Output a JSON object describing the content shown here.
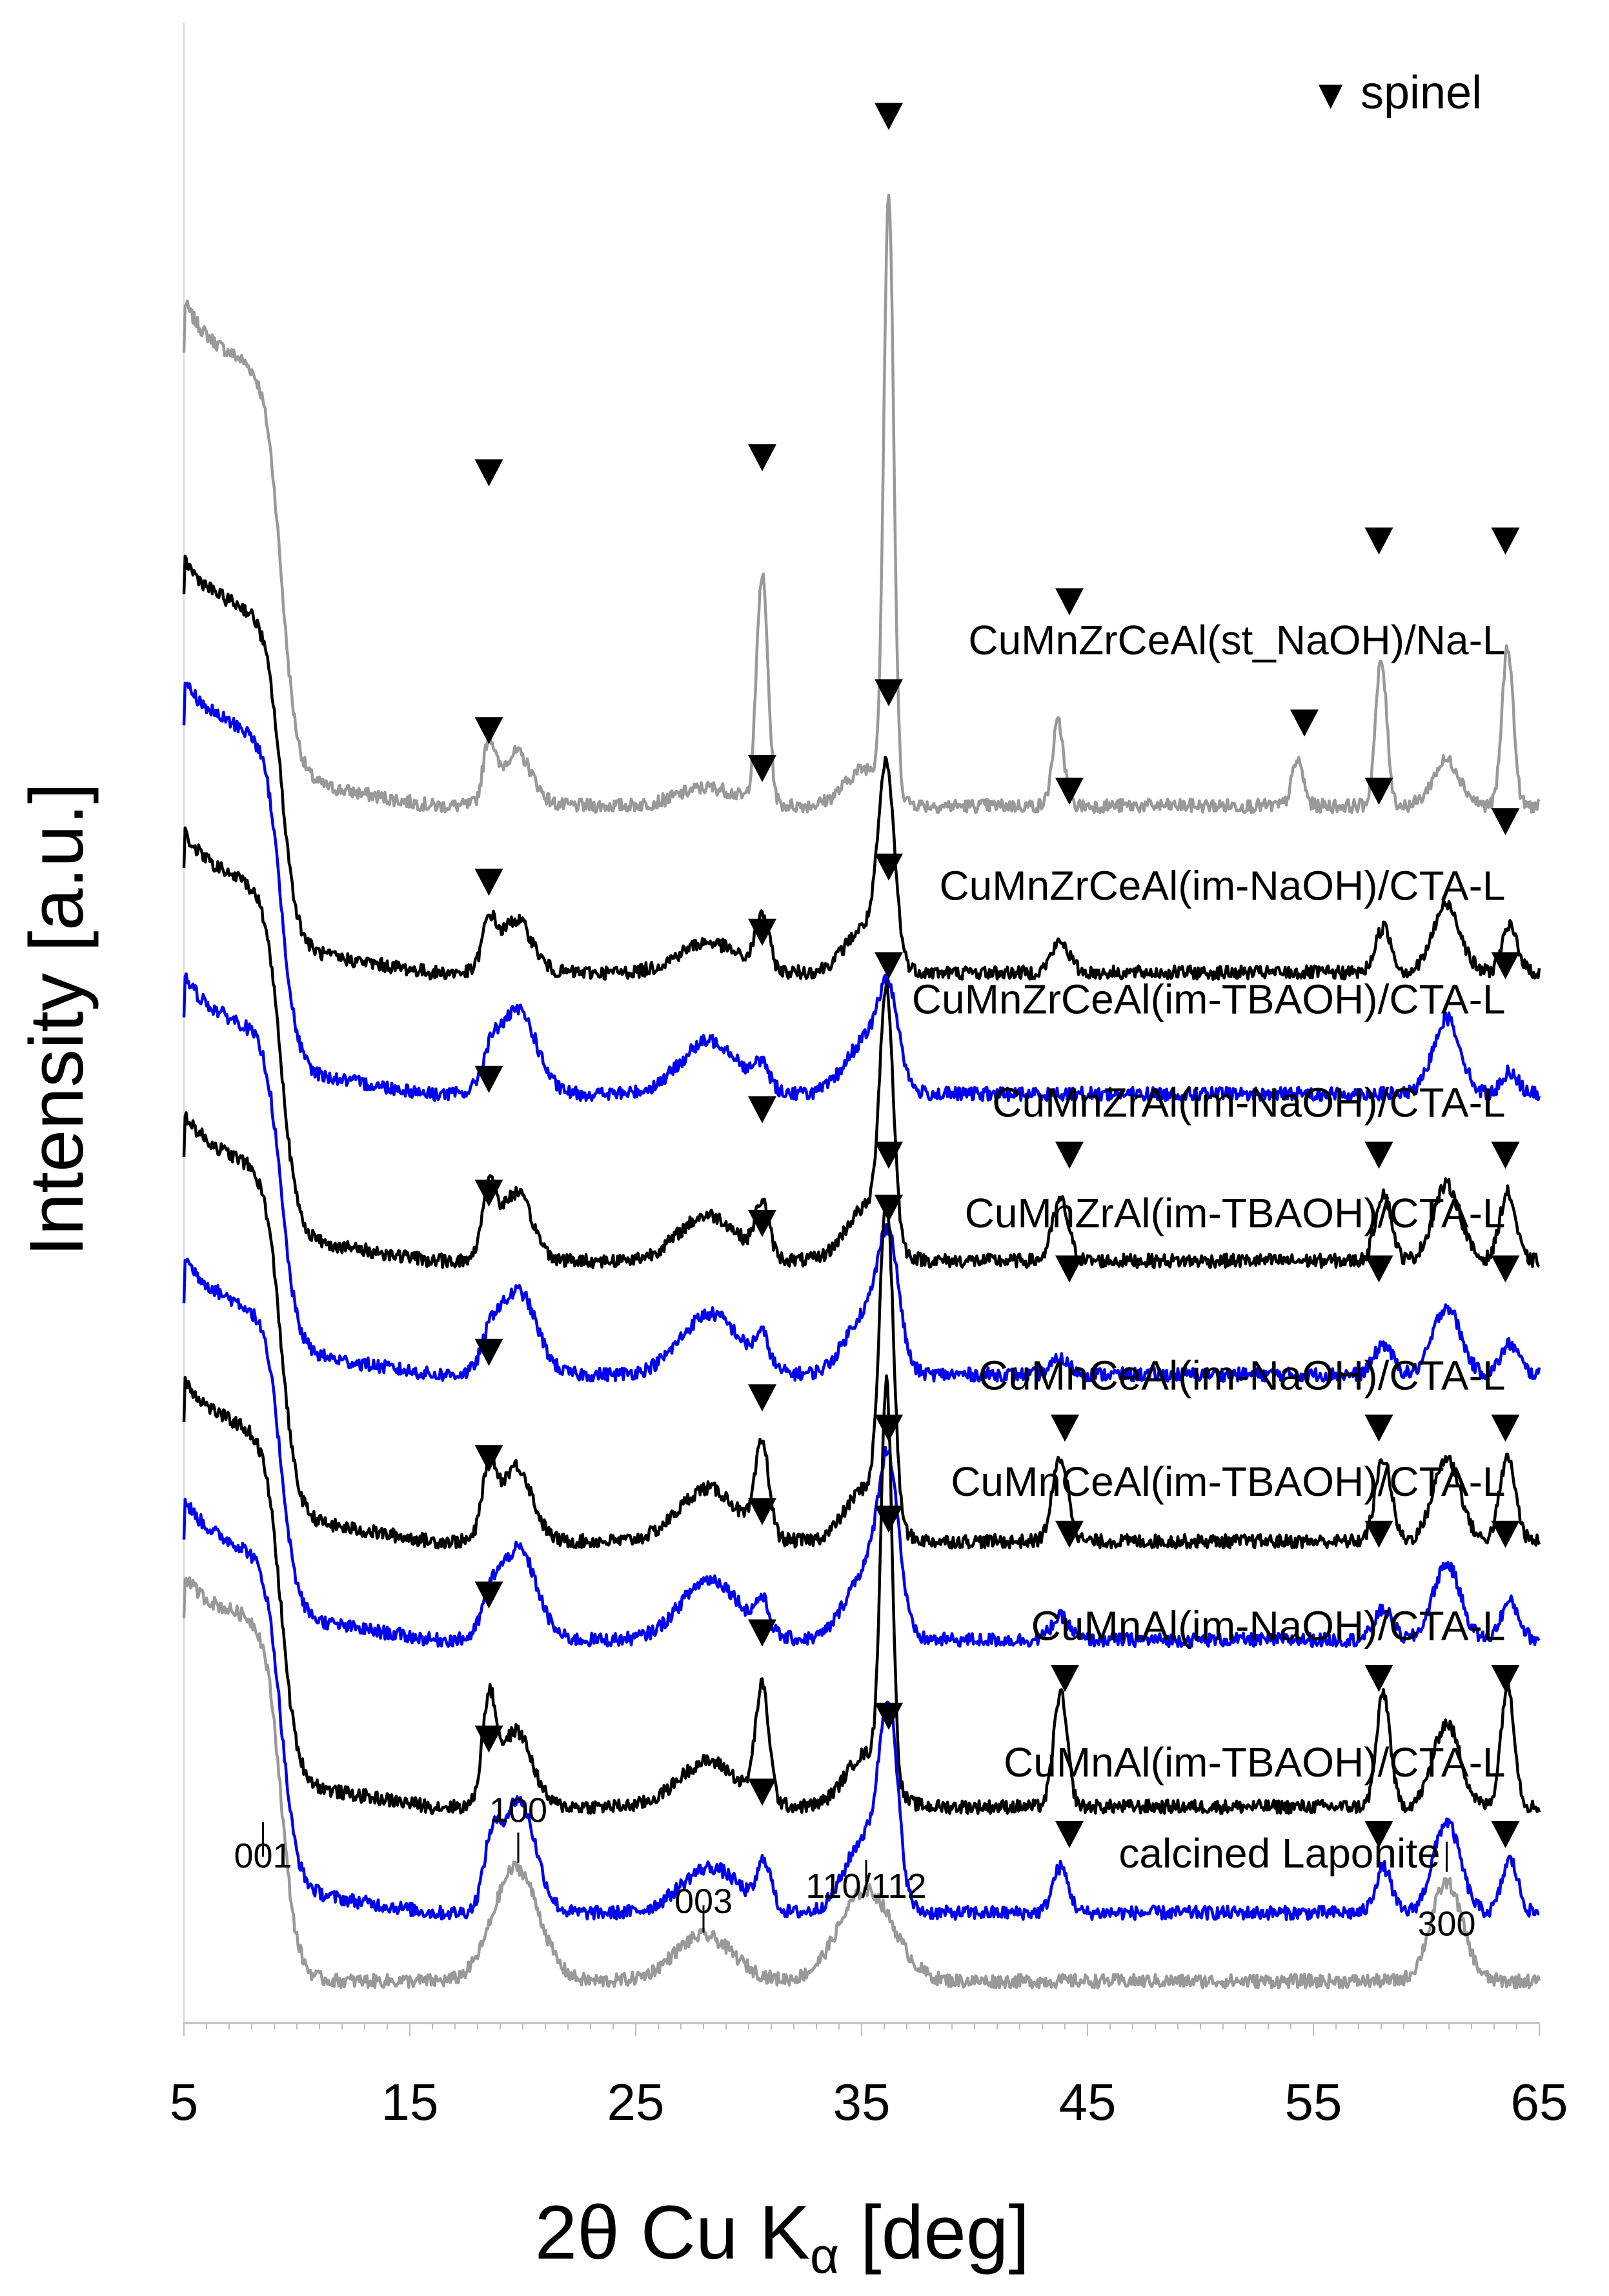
{
  "chart_data": {
    "type": "line",
    "xlabel": "2θ Cu Kα [deg]",
    "xlabel_parts": {
      "main": "2θ Cu K",
      "sub": "α",
      "unit": " [deg]"
    },
    "ylabel": "Intensity [a.u.]",
    "xlim": [
      5,
      65
    ],
    "x_ticks": [
      5,
      15,
      25,
      35,
      45,
      55,
      65
    ],
    "grid": false,
    "legend": {
      "position": "top-right",
      "marker": "▼",
      "label": "spinel"
    },
    "series": [
      {
        "name": "CuMnZrCeAl(st_NaOH)/Na-L",
        "color": "#999999",
        "offset": 7.75,
        "shoulder": 2.7,
        "hump": 0.28,
        "peaks": [
          [
            18.5,
            0.38,
            0.25
          ],
          [
            19.7,
            0.35,
            0.7
          ],
          [
            28.2,
            0.12,
            1.3
          ],
          [
            30.6,
            1.5,
            0.25
          ],
          [
            35.2,
            0.25,
            0.9
          ],
          [
            36.2,
            3.9,
            0.22
          ],
          [
            43.7,
            0.55,
            0.25
          ],
          [
            54.3,
            0.3,
            0.25
          ],
          [
            58.0,
            0.95,
            0.25
          ],
          [
            60.9,
            0.3,
            0.6
          ],
          [
            63.6,
            1.05,
            0.25
          ]
        ],
        "spinel_markers": [
          [
            18.5,
            9.95
          ],
          [
            30.6,
            10.05
          ],
          [
            36.2,
            12.3
          ],
          [
            44.2,
            9.1
          ],
          [
            54.6,
            8.3
          ],
          [
            57.9,
            9.5
          ],
          [
            63.5,
            9.5
          ]
        ]
      },
      {
        "name": "CuMnZrCeAl(im-NaOH)/CTA-L",
        "color": "#000000",
        "offset": 6.65,
        "shoulder": 2.2,
        "hump": 0.25,
        "peaks": [
          [
            18.5,
            0.3,
            0.3
          ],
          [
            19.7,
            0.35,
            0.7
          ],
          [
            28.2,
            0.2,
            1.3
          ],
          [
            30.6,
            0.35,
            0.3
          ],
          [
            35.2,
            0.3,
            0.9
          ],
          [
            36.1,
            1.2,
            0.35
          ],
          [
            43.8,
            0.2,
            0.4
          ],
          [
            58.1,
            0.3,
            0.35
          ],
          [
            60.9,
            0.45,
            0.6
          ],
          [
            63.7,
            0.3,
            0.35
          ]
        ],
        "spinel_markers": [
          [
            18.5,
            8.25
          ],
          [
            30.6,
            8.0
          ],
          [
            36.2,
            8.5
          ],
          [
            44.2,
            7.85
          ],
          [
            57.9,
            7.85
          ],
          [
            63.5,
            7.65
          ]
        ]
      },
      {
        "name": "CuMnZrCeAl(im-TBAOH)/CTA-L",
        "color": "#0000ee",
        "offset": 5.85,
        "shoulder": 2.2,
        "hump": 0.25,
        "peaks": [
          [
            18.6,
            0.2,
            0.4
          ],
          [
            19.8,
            0.55,
            0.8
          ],
          [
            28.3,
            0.35,
            1.3
          ],
          [
            30.6,
            0.15,
            0.3
          ],
          [
            35.2,
            0.35,
            0.9
          ],
          [
            36.2,
            0.55,
            0.45
          ],
          [
            60.9,
            0.5,
            0.6
          ],
          [
            63.7,
            0.15,
            0.35
          ]
        ],
        "spinel_markers": [
          [
            18.5,
            7.25
          ],
          [
            30.6,
            6.92
          ],
          [
            36.2,
            7.35
          ],
          [
            63.5,
            6.7
          ]
        ]
      },
      {
        "name": "CuMnZrAl(im-NaOH)/CTA-L",
        "color": "#000000",
        "offset": 4.75,
        "shoulder": 2.3,
        "hump": 0.25,
        "peaks": [
          [
            18.5,
            0.45,
            0.3
          ],
          [
            19.7,
            0.45,
            0.7
          ],
          [
            28.2,
            0.3,
            1.3
          ],
          [
            30.6,
            0.35,
            0.3
          ],
          [
            35.2,
            0.35,
            0.9
          ],
          [
            36.1,
            1.6,
            0.3
          ],
          [
            43.8,
            0.4,
            0.35
          ],
          [
            58.1,
            0.45,
            0.35
          ],
          [
            60.9,
            0.5,
            0.6
          ],
          [
            63.6,
            0.45,
            0.35
          ]
        ],
        "spinel_markers": [
          [
            18.5,
            5.95
          ],
          [
            30.6,
            5.75
          ],
          [
            36.2,
            6.7
          ],
          [
            44.2,
            5.45
          ],
          [
            57.9,
            5.45
          ],
          [
            63.5,
            5.45
          ]
        ]
      },
      {
        "name": "CuMnZrAl(im-TBAOH)/CTA-L",
        "color": "#0000ee",
        "offset": 4.0,
        "shoulder": 2.1,
        "hump": 0.25,
        "peaks": [
          [
            18.6,
            0.2,
            0.4
          ],
          [
            19.8,
            0.55,
            0.8
          ],
          [
            28.3,
            0.4,
            1.3
          ],
          [
            30.6,
            0.2,
            0.3
          ],
          [
            35.2,
            0.4,
            0.9
          ],
          [
            36.2,
            0.75,
            0.45
          ],
          [
            43.8,
            0.1,
            0.4
          ],
          [
            58.1,
            0.2,
            0.4
          ],
          [
            60.9,
            0.45,
            0.6
          ],
          [
            63.7,
            0.2,
            0.4
          ]
        ],
        "spinel_markers": [
          [
            18.5,
            5.2
          ],
          [
            30.6,
            5.0
          ],
          [
            36.2,
            5.45
          ],
          [
            44.2,
            4.7
          ],
          [
            57.9,
            4.7
          ],
          [
            63.5,
            4.7
          ]
        ]
      },
      {
        "name": "CuMnCeAl(im-NaOH)/CTA-L",
        "color": "#000000",
        "offset": 2.9,
        "shoulder": 2.3,
        "hump": 0.25,
        "peaks": [
          [
            18.5,
            0.45,
            0.3
          ],
          [
            19.7,
            0.5,
            0.7
          ],
          [
            28.2,
            0.35,
            1.3
          ],
          [
            30.6,
            0.6,
            0.3
          ],
          [
            35.2,
            0.35,
            0.9
          ],
          [
            36.1,
            2.05,
            0.3
          ],
          [
            43.8,
            0.55,
            0.35
          ],
          [
            58.1,
            0.55,
            0.35
          ],
          [
            60.9,
            0.55,
            0.6
          ],
          [
            63.6,
            0.55,
            0.35
          ]
        ],
        "spinel_markers": [
          [
            18.5,
            4.15
          ],
          [
            30.6,
            3.85
          ],
          [
            36.2,
            5.1
          ],
          [
            44.0,
            3.65
          ],
          [
            57.9,
            3.65
          ],
          [
            63.5,
            3.65
          ]
        ]
      },
      {
        "name": "CuMnCeAl(im-TBAOH)/CTA-L",
        "color": "#0000ee",
        "offset": 2.25,
        "shoulder": 2.0,
        "hump": 0.25,
        "peaks": [
          [
            18.6,
            0.2,
            0.4
          ],
          [
            19.8,
            0.6,
            0.8
          ],
          [
            28.3,
            0.4,
            1.3
          ],
          [
            30.6,
            0.2,
            0.3
          ],
          [
            35.2,
            0.45,
            0.9
          ],
          [
            36.2,
            1.0,
            0.45
          ],
          [
            43.8,
            0.15,
            0.4
          ],
          [
            58.1,
            0.2,
            0.4
          ],
          [
            60.9,
            0.5,
            0.6
          ],
          [
            63.7,
            0.25,
            0.4
          ]
        ],
        "spinel_markers": [
          [
            18.5,
            3.45
          ],
          [
            30.6,
            3.1
          ],
          [
            36.2,
            3.65
          ],
          [
            44.2,
            2.95
          ],
          [
            57.9,
            2.95
          ],
          [
            63.5,
            2.95
          ]
        ]
      },
      {
        "name": "CuMnAl(im-NaOH)/CTA-L",
        "color": "#000000",
        "offset": 1.15,
        "shoulder": 2.3,
        "hump": 0.25,
        "peaks": [
          [
            18.5,
            0.65,
            0.3
          ],
          [
            19.7,
            0.5,
            0.7
          ],
          [
            28.2,
            0.3,
            1.3
          ],
          [
            30.6,
            0.75,
            0.3
          ],
          [
            35.2,
            0.35,
            0.9
          ],
          [
            36.1,
            2.6,
            0.25
          ],
          [
            43.8,
            0.75,
            0.3
          ],
          [
            58.1,
            0.75,
            0.3
          ],
          [
            60.9,
            0.55,
            0.6
          ],
          [
            63.6,
            0.8,
            0.3
          ]
        ],
        "spinel_markers": [
          [
            18.5,
            2.55
          ],
          [
            30.6,
            2.3
          ],
          [
            36.2,
            3.05
          ],
          [
            44.0,
            2.0
          ],
          [
            57.9,
            2.0
          ],
          [
            63.5,
            2.0
          ]
        ]
      },
      {
        "name": "CuMnAl(im-TBAOH)/CTA-L",
        "color": "#0000ee",
        "offset": 0.45,
        "shoulder": 2.2,
        "hump": 0.25,
        "peaks": [
          [
            18.6,
            0.35,
            0.35
          ],
          [
            19.8,
            0.75,
            0.75
          ],
          [
            28.3,
            0.3,
            1.3
          ],
          [
            30.7,
            0.3,
            0.3
          ],
          [
            35.2,
            0.5,
            0.9
          ],
          [
            36.2,
            1.15,
            0.4
          ],
          [
            43.8,
            0.3,
            0.35
          ],
          [
            58.1,
            0.3,
            0.35
          ],
          [
            60.9,
            0.6,
            0.6
          ],
          [
            63.7,
            0.35,
            0.35
          ]
        ],
        "spinel_markers": [
          [
            18.5,
            1.6
          ],
          [
            30.6,
            1.25
          ],
          [
            36.2,
            1.75
          ],
          [
            44.2,
            0.97
          ],
          [
            57.9,
            0.97
          ],
          [
            63.5,
            0.97
          ]
        ]
      },
      {
        "name": "calcined Laponite",
        "color": "#999999",
        "offset": 0.0,
        "shoulder": 2.4,
        "hump": 0.0,
        "peaks": [
          [
            19.7,
            0.75,
            1.0
          ],
          [
            28.0,
            0.3,
            1.3
          ],
          [
            35.2,
            0.6,
            1.2
          ],
          [
            60.9,
            0.65,
            0.7
          ]
        ],
        "spinel_markers": []
      }
    ],
    "annotations": [
      {
        "text": "001",
        "x": 8.5,
        "ty": 0.75,
        "y0": 0.82,
        "y1": 1.05
      },
      {
        "text": "100",
        "x": 19.8,
        "ty": 1.05,
        "y0": 0.78,
        "y1": 0.98
      },
      {
        "text": "003",
        "x": 28.0,
        "ty": 0.45,
        "y0": 0.32,
        "y1": 0.5
      },
      {
        "text": "110/112",
        "x": 35.2,
        "ty": 0.55,
        "y0": 0.6,
        "y1": 0.8
      },
      {
        "text": "300",
        "x": 60.9,
        "ty": 0.3,
        "y0": 0.72,
        "y1": 0.92
      }
    ],
    "series_label_positions": [
      [
        63.5,
        8.75
      ],
      [
        63.5,
        7.13
      ],
      [
        63.5,
        6.38
      ],
      [
        63.5,
        5.7
      ],
      [
        63.5,
        4.97
      ],
      [
        63.5,
        3.9
      ],
      [
        63.5,
        3.2
      ],
      [
        63.5,
        2.25
      ],
      [
        63.5,
        1.35
      ],
      [
        53.5,
        0.75
      ]
    ]
  }
}
